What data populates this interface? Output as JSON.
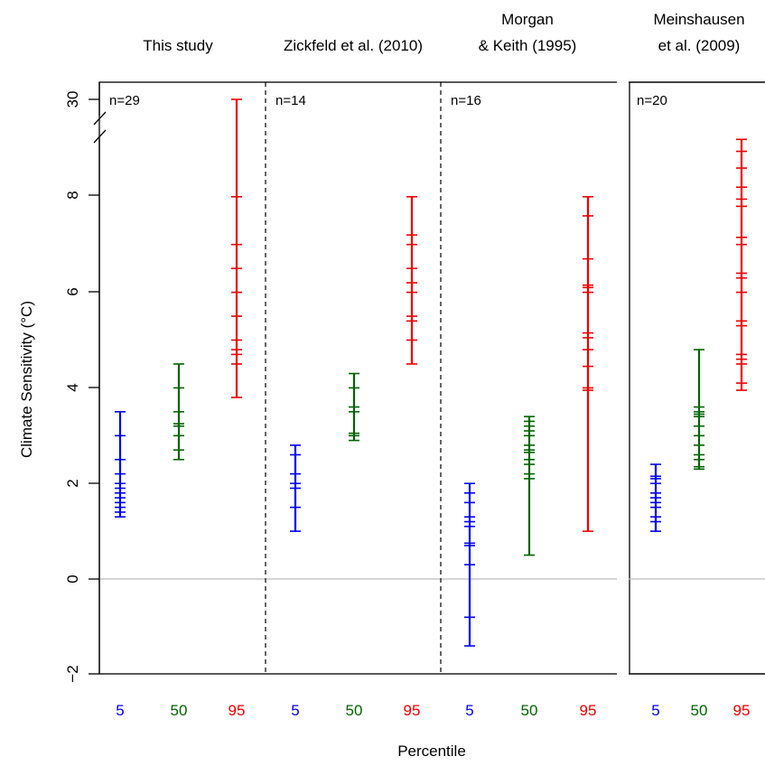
{
  "chart_data": {
    "type": "scatter",
    "ylabel": "Climate Sensitivity (°C)",
    "xlabel": "Percentile",
    "y_ticks": [
      "−2",
      "0",
      "2",
      "4",
      "6",
      "8",
      "30"
    ],
    "y_axis_break": "between 8 and 30",
    "zero_line": true,
    "colors": {
      "p5": "#0000ee",
      "p50": "#006400",
      "p95": "#ee0000",
      "zero_line": "#bbbbbb"
    },
    "panels": [
      {
        "title_lines": [
          "This study"
        ],
        "n_label": "n=29",
        "groups": [
          {
            "percentile": "5",
            "values": [
              1.3,
              1.4,
              1.5,
              1.6,
              1.7,
              1.8,
              1.9,
              2.0,
              2.2,
              2.5,
              3.0,
              3.5
            ]
          },
          {
            "percentile": "50",
            "values": [
              2.5,
              2.7,
              3.0,
              3.2,
              3.25,
              3.5,
              4.0,
              4.5
            ]
          },
          {
            "percentile": "95",
            "values": [
              3.8,
              4.5,
              4.7,
              4.8,
              5.0,
              5.5,
              6.0,
              6.5,
              7.0,
              8.0,
              30
            ]
          }
        ]
      },
      {
        "title_lines": [
          "Zickfeld et al. (2010)"
        ],
        "n_label": "n=14",
        "groups": [
          {
            "percentile": "5",
            "values": [
              1.0,
              1.5,
              1.9,
              2.0,
              2.2,
              2.6,
              2.8
            ]
          },
          {
            "percentile": "50",
            "values": [
              2.9,
              3.0,
              3.05,
              3.5,
              3.6,
              4.0,
              4.3
            ]
          },
          {
            "percentile": "95",
            "values": [
              4.5,
              5.0,
              5.4,
              5.5,
              6.0,
              6.2,
              6.5,
              7.0,
              7.2,
              8.0
            ]
          }
        ]
      },
      {
        "title_lines": [
          "Morgan",
          "& Keith (1995)"
        ],
        "n_label": "n=16",
        "groups": [
          {
            "percentile": "5",
            "values": [
              -1.4,
              -0.8,
              0.3,
              0.7,
              0.75,
              1.1,
              1.2,
              1.3,
              1.6,
              1.8,
              2.0
            ]
          },
          {
            "percentile": "50",
            "values": [
              0.5,
              2.1,
              2.2,
              2.4,
              2.5,
              2.65,
              2.7,
              2.8,
              3.0,
              3.1,
              3.2,
              3.3,
              3.4
            ]
          },
          {
            "percentile": "95",
            "values": [
              1.0,
              3.95,
              4.0,
              4.45,
              4.8,
              5.05,
              5.15,
              6.0,
              6.1,
              6.15,
              6.7,
              7.6,
              8.0
            ]
          }
        ]
      },
      {
        "title_lines": [
          "Meinshausen",
          "et al. (2009)"
        ],
        "n_label": "n=20",
        "groups": [
          {
            "percentile": "5",
            "values": [
              1.0,
              1.2,
              1.3,
              1.5,
              1.6,
              1.7,
              1.8,
              2.0,
              2.1,
              2.15,
              2.4
            ]
          },
          {
            "percentile": "50",
            "values": [
              2.3,
              2.35,
              2.5,
              2.6,
              2.8,
              3.0,
              3.2,
              3.4,
              3.45,
              3.5,
              3.6,
              4.8
            ]
          },
          {
            "percentile": "95",
            "values": [
              3.95,
              4.1,
              4.5,
              4.6,
              4.7,
              5.3,
              5.4,
              6.0,
              6.3,
              6.4,
              7.0,
              7.15,
              7.8,
              7.95,
              8.2,
              8.6,
              8.95,
              9.2
            ]
          }
        ]
      }
    ]
  }
}
